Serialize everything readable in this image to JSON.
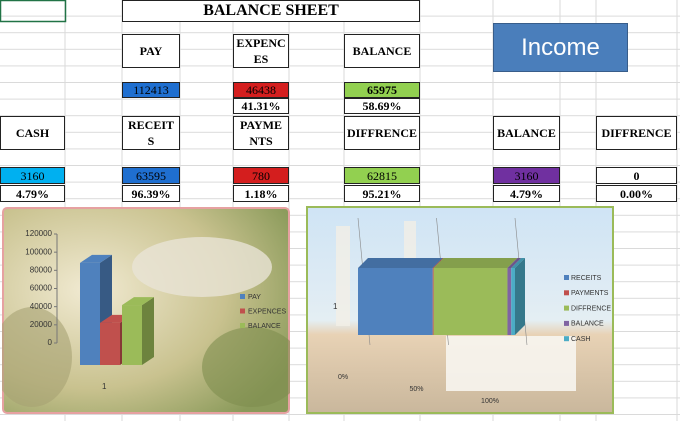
{
  "sheet": {
    "title": "BALANCE SHEET",
    "button": "Income",
    "cells": [
      "PAY",
      "EXPENCES",
      "BALANCE",
      "112413",
      "46438",
      "65975",
      "41.31%",
      "58.69%",
      "CASH",
      "RECEITS",
      "PAYMENTS",
      "DIFFRENCE",
      "BALANCE",
      "DIFFRENCE",
      "3160",
      "63595",
      "780",
      "62815",
      "3160",
      "0",
      "4.79%",
      "96.39%",
      "1.18%",
      "95.21%",
      "4.79%",
      "0.00%"
    ]
  },
  "chart_data": [
    {
      "type": "bar",
      "categories": [
        "1"
      ],
      "series": [
        {
          "name": "PAY",
          "color": "#4f81bd",
          "values": [
            112413
          ]
        },
        {
          "name": "EXPENCES",
          "color": "#c0504d",
          "values": [
            46438
          ]
        },
        {
          "name": "BALANCE",
          "color": "#9bbb59",
          "values": [
            65975
          ]
        }
      ],
      "ylim": [
        0,
        120000
      ],
      "yticks": [
        0,
        20000,
        40000,
        60000,
        80000,
        100000,
        120000
      ]
    },
    {
      "type": "barh",
      "stacked": true,
      "categories": [
        "1"
      ],
      "series": [
        {
          "name": "RECEITS",
          "color": "#4f81bd",
          "values": [
            47.6
          ]
        },
        {
          "name": "PAYMENTS",
          "color": "#c0504d",
          "values": [
            0.6
          ]
        },
        {
          "name": "DIFFRENCE",
          "color": "#9bbb59",
          "values": [
            47.0
          ]
        },
        {
          "name": "BALANCE",
          "color": "#8064a2",
          "values": [
            2.4
          ]
        },
        {
          "name": "CASH",
          "color": "#4bacc6",
          "values": [
            2.4
          ]
        }
      ],
      "xlim": [
        0,
        100
      ],
      "xticks": [
        {
          "value": 0,
          "label": "0%"
        },
        {
          "value": 50,
          "label": "50%"
        },
        {
          "value": 100,
          "label": "100%"
        }
      ]
    }
  ]
}
